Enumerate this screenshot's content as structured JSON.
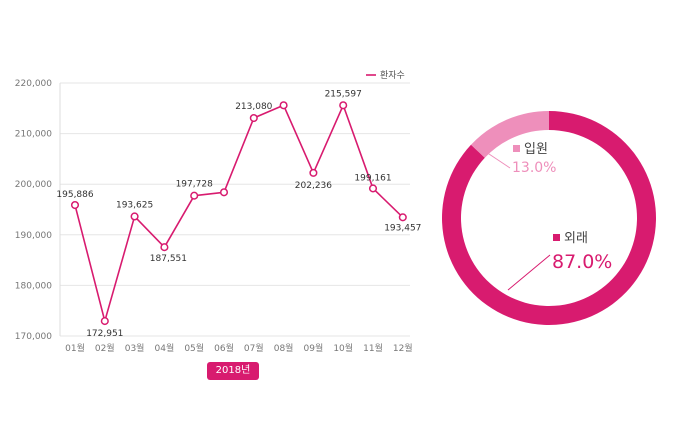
{
  "chart_data": [
    {
      "type": "line",
      "categories": [
        "01월",
        "02월",
        "03월",
        "04월",
        "05월",
        "06월",
        "07월",
        "08월",
        "09월",
        "10월",
        "11월",
        "12월"
      ],
      "series": [
        {
          "name": "환자수",
          "values": [
            195886,
            172951,
            193625,
            187551,
            197728,
            198400,
            213080,
            215600,
            202236,
            215597,
            199161,
            193457
          ]
        }
      ],
      "point_labels": [
        "195,886",
        "172,951",
        "193,625",
        "187,551",
        "197,728",
        "",
        "213,080",
        "",
        "202,236",
        "215,597",
        "199,161",
        "193,457"
      ],
      "y_ticks": [
        "170,000",
        "180,000",
        "190,000",
        "200,000",
        "210,000",
        "220,000"
      ],
      "ylim": [
        170000,
        220000
      ],
      "grid": true,
      "legend": "top-right",
      "color": "#d81b6f",
      "year_label": "2018년"
    },
    {
      "type": "pie",
      "donut": true,
      "slices": [
        {
          "label": "입원",
          "value": 13.0,
          "display": "13.0%",
          "color": "#ee8fbb"
        },
        {
          "label": "외래",
          "value": 87.0,
          "display": "87.0%",
          "color": "#d81b6f"
        }
      ]
    }
  ]
}
